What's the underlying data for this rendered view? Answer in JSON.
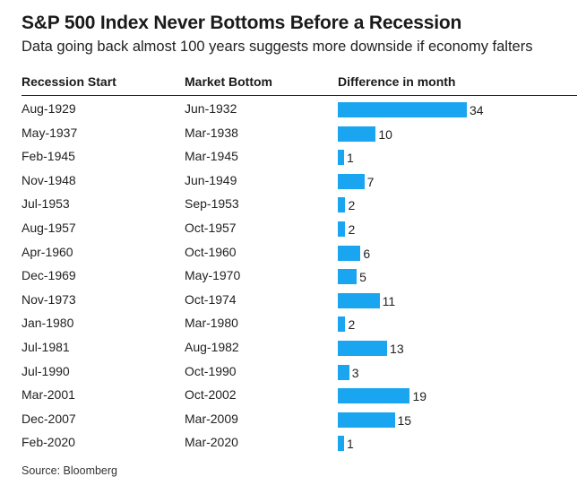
{
  "title": "S&P 500 Index Never Bottoms Before a Recession",
  "subtitle": "Data going back almost 100 years suggests more downside if economy falters",
  "headers": {
    "recession_start": "Recession Start",
    "market_bottom": "Market Bottom",
    "difference": "Difference in month"
  },
  "source": "Source: Bloomberg",
  "colors": {
    "bar": "#1aa5f1",
    "text": "#222222"
  },
  "chart_data": {
    "type": "bar",
    "orientation": "horizontal",
    "title": "S&P 500 Index Never Bottoms Before a Recession",
    "subtitle": "Data going back almost 100 years suggests more downside if economy falters",
    "columns": [
      "Recession Start",
      "Market Bottom",
      "Difference in month"
    ],
    "rows": [
      {
        "recession_start": "Aug-1929",
        "market_bottom": "Jun-1932",
        "difference": 34
      },
      {
        "recession_start": "May-1937",
        "market_bottom": "Mar-1938",
        "difference": 10
      },
      {
        "recession_start": "Feb-1945",
        "market_bottom": "Mar-1945",
        "difference": 1
      },
      {
        "recession_start": "Nov-1948",
        "market_bottom": "Jun-1949",
        "difference": 7
      },
      {
        "recession_start": "Jul-1953",
        "market_bottom": "Sep-1953",
        "difference": 2
      },
      {
        "recession_start": "Aug-1957",
        "market_bottom": "Oct-1957",
        "difference": 2
      },
      {
        "recession_start": "Apr-1960",
        "market_bottom": "Oct-1960",
        "difference": 6
      },
      {
        "recession_start": "Dec-1969",
        "market_bottom": "May-1970",
        "difference": 5
      },
      {
        "recession_start": "Nov-1973",
        "market_bottom": "Oct-1974",
        "difference": 11
      },
      {
        "recession_start": "Jan-1980",
        "market_bottom": "Mar-1980",
        "difference": 2
      },
      {
        "recession_start": "Jul-1981",
        "market_bottom": "Aug-1982",
        "difference": 13
      },
      {
        "recession_start": "Jul-1990",
        "market_bottom": "Oct-1990",
        "difference": 3
      },
      {
        "recession_start": "Mar-2001",
        "market_bottom": "Oct-2002",
        "difference": 19
      },
      {
        "recession_start": "Dec-2007",
        "market_bottom": "Mar-2009",
        "difference": 15
      },
      {
        "recession_start": "Feb-2020",
        "market_bottom": "Mar-2020",
        "difference": 1
      }
    ],
    "xlim": [
      0,
      34
    ],
    "grid": false,
    "legend": "none",
    "source": "Source: Bloomberg"
  }
}
